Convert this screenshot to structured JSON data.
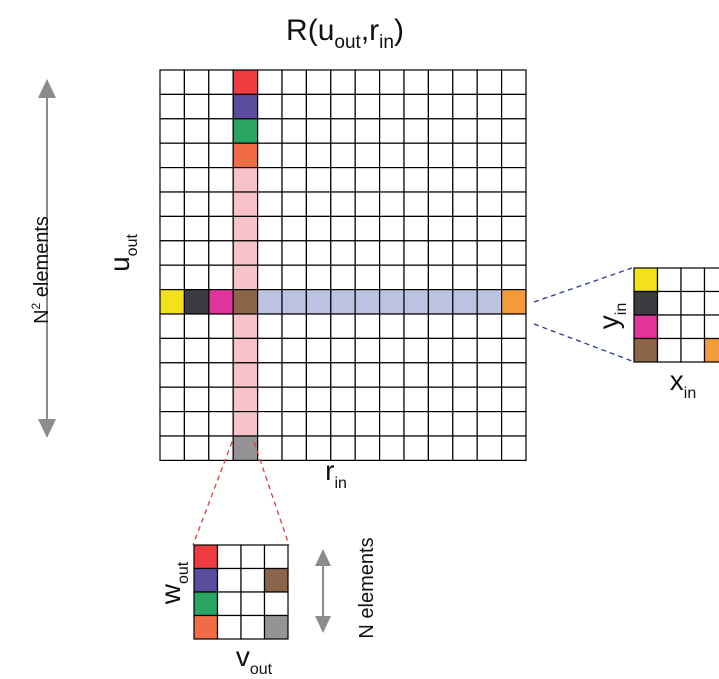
{
  "title": {
    "main": "R(u",
    "sub1": "out",
    "sep": ",r",
    "sub2": "in",
    "close": ")"
  },
  "labels": {
    "vertical_count": {
      "main": "N",
      "sup": "2",
      "rest": " elements"
    },
    "u_out": {
      "main": "u",
      "sub": "out"
    },
    "r_in": {
      "main": "r",
      "sub": "in"
    },
    "y_in": {
      "main": "y",
      "sub": "in"
    },
    "x_in": {
      "main": "x",
      "sub": "in"
    },
    "w_out": {
      "main": "w",
      "sub": "out"
    },
    "v_out": {
      "main": "v",
      "sub": "out"
    },
    "small_count": "N elements"
  },
  "colors": {
    "red": "#ef3b3f",
    "purple": "#5b4c9e",
    "green": "#2aa463",
    "orange_red": "#f26b47",
    "yellow": "#f3e21a",
    "dark_gray": "#3c3b3f",
    "magenta": "#e0349a",
    "brown": "#8a654a",
    "orange": "#f39a3a",
    "gray": "#969396",
    "pink": "#f7c3c8",
    "lavender": "#bcc3e0",
    "arrow": "#8c8c8c",
    "red_dash": "#e33b3b",
    "blue_dash": "#2b3a8a"
  },
  "big_grid": {
    "rows": 16,
    "cols": 15,
    "column_band": 3,
    "row_band": 9,
    "cells": [
      {
        "r": 0,
        "c": 3,
        "color": "red"
      },
      {
        "r": 1,
        "c": 3,
        "color": "purple"
      },
      {
        "r": 2,
        "c": 3,
        "color": "green"
      },
      {
        "r": 3,
        "c": 3,
        "color": "orange_red"
      },
      {
        "r": 9,
        "c": 0,
        "color": "yellow"
      },
      {
        "r": 9,
        "c": 1,
        "color": "dark_gray"
      },
      {
        "r": 9,
        "c": 2,
        "color": "magenta"
      },
      {
        "r": 9,
        "c": 3,
        "color": "brown"
      },
      {
        "r": 9,
        "c": 14,
        "color": "orange"
      },
      {
        "r": 15,
        "c": 3,
        "color": "gray"
      }
    ]
  },
  "input_grid": {
    "rows": 4,
    "cols": 4,
    "cells": [
      {
        "r": 0,
        "c": 0,
        "color": "yellow"
      },
      {
        "r": 1,
        "c": 0,
        "color": "dark_gray"
      },
      {
        "r": 2,
        "c": 0,
        "color": "magenta"
      },
      {
        "r": 3,
        "c": 0,
        "color": "brown"
      },
      {
        "r": 3,
        "c": 3,
        "color": "orange"
      }
    ]
  },
  "output_grid": {
    "rows": 4,
    "cols": 4,
    "cells": [
      {
        "r": 0,
        "c": 0,
        "color": "red"
      },
      {
        "r": 1,
        "c": 0,
        "color": "purple"
      },
      {
        "r": 2,
        "c": 0,
        "color": "green"
      },
      {
        "r": 3,
        "c": 0,
        "color": "orange_red"
      },
      {
        "r": 1,
        "c": 3,
        "color": "brown"
      },
      {
        "r": 3,
        "c": 3,
        "color": "gray"
      }
    ]
  }
}
